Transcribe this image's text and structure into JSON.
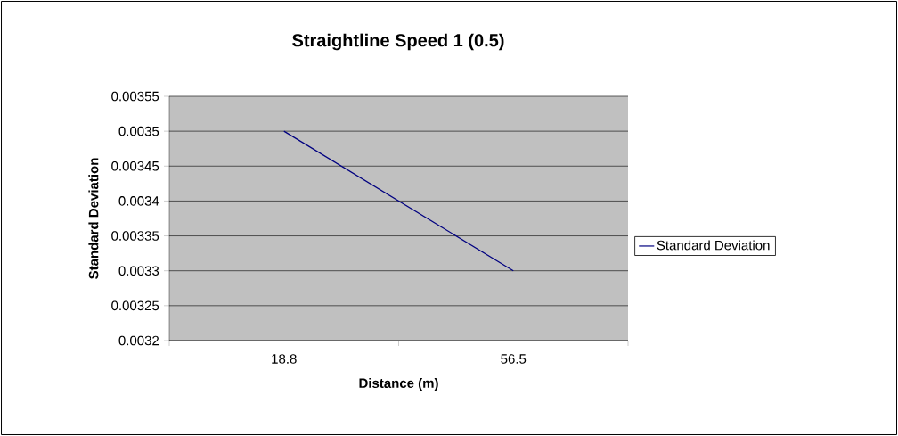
{
  "chart_data": {
    "type": "line",
    "title": "Straightline Speed 1 (0.5)",
    "xlabel": "Distance (m)",
    "ylabel": "Standard Deviation",
    "categories": [
      "18.8",
      "56.5"
    ],
    "series": [
      {
        "name": "Standard Deviation",
        "color": "#000080",
        "values": [
          0.0035,
          0.0033
        ]
      }
    ],
    "ylim": [
      0.0032,
      0.00355
    ],
    "yticks": [
      0.0032,
      0.00325,
      0.0033,
      0.00335,
      0.0034,
      0.00345,
      0.0035,
      0.00355
    ],
    "grid": "y",
    "legend": "right",
    "marker": "none"
  }
}
